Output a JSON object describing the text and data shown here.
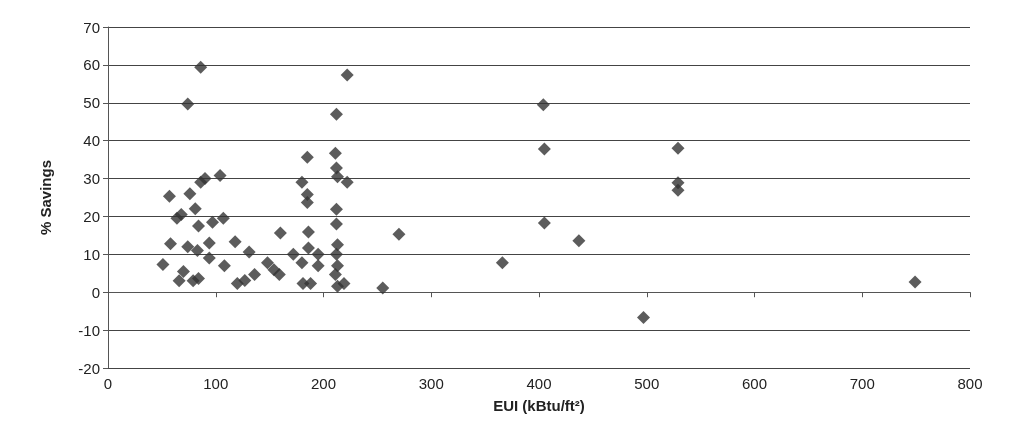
{
  "chart_data": {
    "type": "scatter",
    "xlabel": "EUI (kBtu/ft²)",
    "ylabel": "% Savings",
    "marker": "diamond",
    "grid": "y",
    "color": "#333333",
    "x": [
      86,
      74,
      57,
      51,
      58,
      64,
      68,
      76,
      81,
      86,
      90,
      104,
      84,
      97,
      107,
      74,
      83,
      94,
      70,
      66,
      79,
      84,
      94,
      108,
      118,
      131,
      120,
      127,
      136,
      148,
      154,
      160,
      159,
      172,
      180,
      180,
      185,
      185,
      185,
      186,
      181,
      188,
      186,
      195,
      195,
      212,
      222,
      211,
      212,
      213,
      222,
      212,
      212,
      213,
      212,
      213,
      211,
      213,
      219,
      255,
      270,
      366,
      404,
      405,
      405,
      437,
      497,
      529,
      529,
      529,
      749
    ],
    "values": [
      59.4,
      49.7,
      25.3,
      7.3,
      12.8,
      19.5,
      20.5,
      26,
      22,
      29,
      30,
      30.8,
      17.5,
      18.5,
      19.5,
      12,
      11,
      13,
      5.5,
      3,
      3,
      3.6,
      9,
      7,
      13.3,
      10.6,
      2.3,
      3.1,
      4.7,
      7.8,
      5.9,
      15.6,
      4.7,
      10,
      7.8,
      29,
      35.6,
      25.8,
      23.7,
      15.9,
      2.3,
      2.3,
      11.7,
      10,
      7,
      47,
      57.3,
      36.7,
      32.8,
      30.5,
      29,
      21.9,
      18,
      12.5,
      10,
      7,
      4.7,
      1.6,
      2.3,
      1.1,
      15.3,
      7.8,
      49.5,
      37.8,
      18.3,
      13.6,
      -6.7,
      38,
      28.9,
      26.9,
      2.7
    ],
    "xlim": [
      0,
      800
    ],
    "xticks": [
      0,
      100,
      200,
      300,
      400,
      500,
      600,
      700,
      800
    ],
    "ylim": [
      -20,
      70
    ],
    "yticks": [
      -20,
      -10,
      0,
      10,
      20,
      30,
      40,
      50,
      60,
      70
    ]
  }
}
